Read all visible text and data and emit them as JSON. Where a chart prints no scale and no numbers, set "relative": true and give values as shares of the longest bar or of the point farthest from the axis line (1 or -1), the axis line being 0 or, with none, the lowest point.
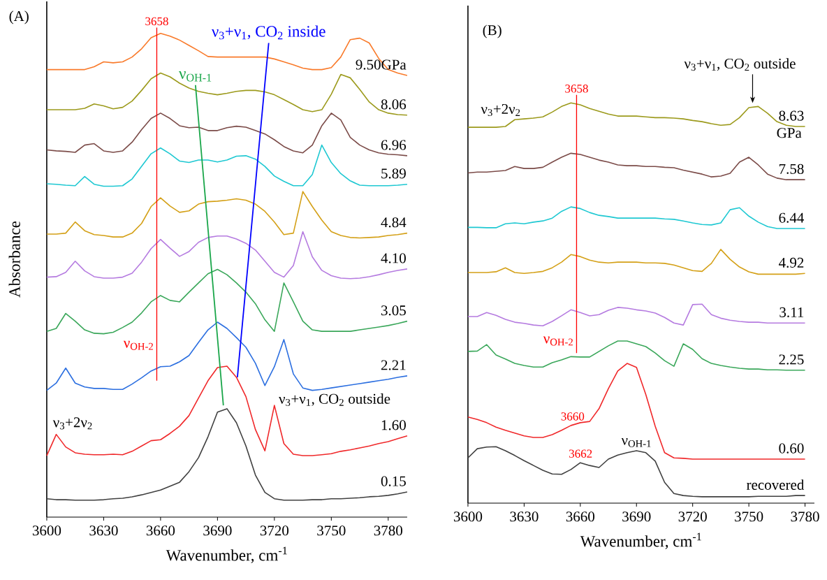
{
  "chart_data": [
    {
      "type": "line",
      "relative": true,
      "xlabel": "Wavenumber, cm$^{-1}$",
      "ylabel": "Absorbance",
      "xlim": [
        3600,
        3790
      ],
      "xticks": [
        3600,
        3630,
        3660,
        3690,
        3720,
        3750,
        3780
      ],
      "x": [
        3600,
        3605,
        3610,
        3615,
        3620,
        3625,
        3630,
        3635,
        3640,
        3645,
        3650,
        3655,
        3660,
        3665,
        3670,
        3675,
        3680,
        3685,
        3690,
        3695,
        3700,
        3705,
        3710,
        3715,
        3720,
        3725,
        3730,
        3735,
        3740,
        3745,
        3750,
        3755,
        3760,
        3765,
        3770,
        3775,
        3780,
        3785,
        3790
      ],
      "series": [
        {
          "name": "9.50GPa",
          "color": "#f97a2a",
          "values": [
            0.925,
            0.925,
            0.925,
            0.925,
            0.925,
            0.931,
            0.941,
            0.939,
            0.941,
            0.951,
            0.968,
            0.991,
            1.0,
            0.994,
            0.986,
            0.975,
            0.964,
            0.952,
            0.951,
            0.951,
            0.951,
            0.951,
            0.951,
            0.951,
            0.947,
            0.941,
            0.935,
            0.928,
            0.925,
            0.925,
            0.929,
            0.951,
            0.987,
            0.99,
            0.98,
            0.948,
            0.925,
            0.918,
            0.913
          ]
        },
        {
          "name": "8.06",
          "color": "#9c9a1c",
          "values": [
            0.842,
            0.842,
            0.842,
            0.842,
            0.845,
            0.854,
            0.85,
            0.844,
            0.847,
            0.86,
            0.882,
            0.906,
            0.918,
            0.91,
            0.897,
            0.887,
            0.88,
            0.876,
            0.873,
            0.876,
            0.88,
            0.882,
            0.882,
            0.879,
            0.873,
            0.863,
            0.853,
            0.842,
            0.838,
            0.842,
            0.874,
            0.915,
            0.908,
            0.884,
            0.858,
            0.842,
            0.835,
            0.832,
            0.831
          ]
        },
        {
          "name": "6.96",
          "color": "#7b4b48",
          "values": [
            0.759,
            0.757,
            0.756,
            0.754,
            0.769,
            0.772,
            0.757,
            0.754,
            0.757,
            0.775,
            0.801,
            0.824,
            0.835,
            0.824,
            0.809,
            0.805,
            0.806,
            0.799,
            0.799,
            0.805,
            0.808,
            0.806,
            0.799,
            0.792,
            0.78,
            0.766,
            0.757,
            0.753,
            0.769,
            0.809,
            0.835,
            0.821,
            0.785,
            0.769,
            0.759,
            0.753,
            0.75,
            0.749,
            0.747
          ]
        },
        {
          "name": "5.89",
          "color": "#1ec8d2",
          "values": [
            0.689,
            0.688,
            0.686,
            0.685,
            0.704,
            0.688,
            0.684,
            0.684,
            0.685,
            0.699,
            0.725,
            0.751,
            0.763,
            0.751,
            0.736,
            0.733,
            0.738,
            0.738,
            0.734,
            0.738,
            0.746,
            0.747,
            0.74,
            0.725,
            0.705,
            0.694,
            0.685,
            0.685,
            0.708,
            0.769,
            0.733,
            0.71,
            0.695,
            0.686,
            0.685,
            0.685,
            0.685,
            0.686,
            0.688
          ]
        },
        {
          "name": "4.84",
          "color": "#d4a017",
          "values": [
            0.585,
            0.585,
            0.587,
            0.61,
            0.592,
            0.584,
            0.582,
            0.579,
            0.579,
            0.587,
            0.607,
            0.642,
            0.66,
            0.643,
            0.63,
            0.633,
            0.647,
            0.652,
            0.653,
            0.655,
            0.658,
            0.655,
            0.647,
            0.632,
            0.61,
            0.584,
            0.587,
            0.673,
            0.642,
            0.614,
            0.59,
            0.582,
            0.578,
            0.577,
            0.578,
            0.579,
            0.582,
            0.584,
            0.587
          ]
        },
        {
          "name": "4.10",
          "color": "#b57be0",
          "values": [
            0.496,
            0.497,
            0.506,
            0.529,
            0.509,
            0.497,
            0.494,
            0.494,
            0.496,
            0.504,
            0.527,
            0.555,
            0.574,
            0.556,
            0.539,
            0.549,
            0.568,
            0.578,
            0.581,
            0.581,
            0.575,
            0.566,
            0.552,
            0.529,
            0.506,
            0.496,
            0.52,
            0.59,
            0.538,
            0.51,
            0.499,
            0.494,
            0.493,
            0.494,
            0.497,
            0.501,
            0.506,
            0.51,
            0.513
          ]
        },
        {
          "name": "3.05",
          "color": "#3aa75a",
          "values": [
            0.384,
            0.39,
            0.421,
            0.405,
            0.387,
            0.38,
            0.379,
            0.382,
            0.392,
            0.403,
            0.422,
            0.445,
            0.458,
            0.448,
            0.445,
            0.465,
            0.484,
            0.503,
            0.512,
            0.501,
            0.484,
            0.465,
            0.441,
            0.408,
            0.384,
            0.484,
            0.445,
            0.405,
            0.387,
            0.384,
            0.384,
            0.384,
            0.384,
            0.387,
            0.39,
            0.393,
            0.396,
            0.4,
            0.405
          ]
        },
        {
          "name": "2.21",
          "color": "#2c6fe0",
          "values": [
            0.262,
            0.277,
            0.308,
            0.277,
            0.269,
            0.266,
            0.266,
            0.264,
            0.264,
            0.275,
            0.288,
            0.302,
            0.311,
            0.312,
            0.321,
            0.334,
            0.361,
            0.387,
            0.403,
            0.39,
            0.371,
            0.351,
            0.318,
            0.272,
            0.311,
            0.367,
            0.296,
            0.267,
            0.262,
            0.264,
            0.267,
            0.27,
            0.273,
            0.276,
            0.279,
            0.282,
            0.285,
            0.289,
            0.292
          ]
        },
        {
          "name": "1.60",
          "color": "#f0282a",
          "values": [
            0.127,
            0.171,
            0.145,
            0.133,
            0.13,
            0.129,
            0.129,
            0.13,
            0.129,
            0.136,
            0.147,
            0.158,
            0.16,
            0.173,
            0.188,
            0.21,
            0.246,
            0.282,
            0.309,
            0.312,
            0.289,
            0.249,
            0.181,
            0.137,
            0.231,
            0.152,
            0.13,
            0.127,
            0.127,
            0.129,
            0.131,
            0.136,
            0.139,
            0.143,
            0.147,
            0.152,
            0.156,
            0.162,
            0.168
          ]
        },
        {
          "name": "0.15",
          "color": "#404040",
          "values": [
            0.038,
            0.036,
            0.036,
            0.035,
            0.035,
            0.035,
            0.036,
            0.038,
            0.039,
            0.042,
            0.046,
            0.051,
            0.056,
            0.064,
            0.072,
            0.094,
            0.123,
            0.166,
            0.217,
            0.224,
            0.195,
            0.147,
            0.087,
            0.051,
            0.038,
            0.035,
            0.035,
            0.035,
            0.036,
            0.036,
            0.038,
            0.038,
            0.039,
            0.04,
            0.042,
            0.043,
            0.045,
            0.048,
            0.052
          ]
        },
        {
          "name": "ν$_{OH-1}$",
          "color": "#1aa64a",
          "x": [
            3678.4,
            3693.1
          ],
          "values": [
            0.893,
            0.231
          ]
        },
        {
          "name": "ν$_{3}$+ν$_{1}$, CO$_{2}$ inside",
          "color": "#0000ff",
          "x": [
            3717.0,
            3700.5
          ],
          "values": [
            0.98,
            0.289
          ]
        }
      ],
      "ref_lines": [
        {
          "axis": "x",
          "value": 3658,
          "label": "3658",
          "color": "#ff0000"
        }
      ],
      "annotations": [
        "(A)",
        {
          "text": "ν$_{OH-2}$",
          "x": 3658,
          "y": 0.355
        },
        {
          "text": "ν$_{3}$+2ν$_{2}$",
          "x": 3605,
          "y": 0.171
        },
        {
          "text": "ν$_{3}$+ν$_{1}$, CO$_{2}$ outside",
          "x": 3720,
          "y": 0.231
        }
      ]
    },
    {
      "type": "line",
      "relative": true,
      "xlabel": "Wavenumber, cm$^{-1}$",
      "xlim": [
        3600,
        3785
      ],
      "xticks": [
        3600,
        3630,
        3660,
        3690,
        3720,
        3750,
        3780
      ],
      "x": [
        3600,
        3605,
        3610,
        3615,
        3620,
        3625,
        3630,
        3635,
        3640,
        3645,
        3650,
        3655,
        3660,
        3665,
        3670,
        3675,
        3680,
        3685,
        3690,
        3695,
        3700,
        3705,
        3710,
        3715,
        3720,
        3725,
        3730,
        3735,
        3740,
        3745,
        3750,
        3755,
        3760,
        3765,
        3770,
        3775,
        3780
      ],
      "series": [
        {
          "name": "8.63",
          "color": "#9c9a1c",
          "values": [
            0.939,
            0.939,
            0.939,
            0.939,
            0.941,
            0.958,
            0.96,
            0.962,
            0.965,
            0.977,
            0.991,
            1.0,
            0.995,
            0.986,
            0.979,
            0.972,
            0.967,
            0.967,
            0.967,
            0.965,
            0.963,
            0.963,
            0.962,
            0.96,
            0.956,
            0.953,
            0.948,
            0.944,
            0.946,
            0.963,
            0.988,
            0.991,
            0.974,
            0.953,
            0.944,
            0.941,
            0.941
          ]
        },
        {
          "name": "7.58",
          "color": "#7b4b48",
          "values": [
            0.825,
            0.827,
            0.827,
            0.829,
            0.831,
            0.841,
            0.836,
            0.836,
            0.839,
            0.852,
            0.864,
            0.874,
            0.871,
            0.864,
            0.857,
            0.852,
            0.845,
            0.843,
            0.843,
            0.841,
            0.841,
            0.839,
            0.838,
            0.832,
            0.827,
            0.822,
            0.815,
            0.817,
            0.824,
            0.852,
            0.864,
            0.845,
            0.822,
            0.812,
            0.808,
            0.808,
            0.808
          ]
        },
        {
          "name": "6.44",
          "color": "#1ec8d2",
          "values": [
            0.689,
            0.689,
            0.688,
            0.688,
            0.698,
            0.7,
            0.698,
            0.702,
            0.705,
            0.712,
            0.729,
            0.74,
            0.736,
            0.726,
            0.719,
            0.716,
            0.712,
            0.712,
            0.712,
            0.712,
            0.712,
            0.71,
            0.709,
            0.705,
            0.7,
            0.696,
            0.695,
            0.7,
            0.733,
            0.738,
            0.717,
            0.702,
            0.691,
            0.686,
            0.686,
            0.686,
            0.686
          ]
        },
        {
          "name": "4.92",
          "color": "#d4a017",
          "values": [
            0.576,
            0.576,
            0.576,
            0.578,
            0.588,
            0.576,
            0.574,
            0.576,
            0.579,
            0.588,
            0.602,
            0.621,
            0.616,
            0.607,
            0.602,
            0.6,
            0.602,
            0.602,
            0.602,
            0.6,
            0.6,
            0.599,
            0.595,
            0.588,
            0.581,
            0.579,
            0.599,
            0.634,
            0.609,
            0.59,
            0.578,
            0.572,
            0.572,
            0.572,
            0.572,
            0.572,
            0.574
          ]
        },
        {
          "name": "3.11",
          "color": "#b57be0",
          "values": [
            0.466,
            0.466,
            0.476,
            0.469,
            0.459,
            0.452,
            0.449,
            0.445,
            0.443,
            0.454,
            0.468,
            0.483,
            0.476,
            0.468,
            0.471,
            0.482,
            0.489,
            0.487,
            0.483,
            0.48,
            0.475,
            0.464,
            0.45,
            0.445,
            0.496,
            0.497,
            0.471,
            0.462,
            0.457,
            0.454,
            0.452,
            0.452,
            0.45,
            0.45,
            0.45,
            0.45,
            0.45
          ]
        },
        {
          "name": "2.25",
          "color": "#3aa75a",
          "values": [
            0.379,
            0.38,
            0.396,
            0.37,
            0.36,
            0.349,
            0.344,
            0.34,
            0.34,
            0.351,
            0.358,
            0.366,
            0.365,
            0.365,
            0.379,
            0.393,
            0.405,
            0.405,
            0.398,
            0.391,
            0.375,
            0.356,
            0.342,
            0.398,
            0.384,
            0.361,
            0.349,
            0.344,
            0.34,
            0.337,
            0.335,
            0.335,
            0.333,
            0.333,
            0.332,
            0.332,
            0.332
          ]
        },
        {
          "name": "0.60",
          "color": "#f0282a",
          "values": [
            0.215,
            0.209,
            0.201,
            0.19,
            0.182,
            0.175,
            0.168,
            0.164,
            0.164,
            0.171,
            0.182,
            0.194,
            0.201,
            0.204,
            0.236,
            0.286,
            0.33,
            0.349,
            0.339,
            0.271,
            0.192,
            0.126,
            0.113,
            0.112,
            0.11,
            0.11,
            0.11,
            0.11,
            0.11,
            0.11,
            0.11,
            0.11,
            0.11,
            0.11,
            0.11,
            0.11,
            0.11
          ]
        },
        {
          "name": "recovered",
          "color": "#404040",
          "values": [
            0.113,
            0.136,
            0.14,
            0.141,
            0.131,
            0.119,
            0.106,
            0.094,
            0.082,
            0.073,
            0.072,
            0.084,
            0.101,
            0.094,
            0.089,
            0.11,
            0.12,
            0.126,
            0.131,
            0.126,
            0.105,
            0.052,
            0.024,
            0.019,
            0.017,
            0.016,
            0.016,
            0.016,
            0.016,
            0.016,
            0.016,
            0.017,
            0.017,
            0.017,
            0.017,
            0.019,
            0.019
          ]
        }
      ],
      "ref_lines": [
        {
          "axis": "x",
          "value": 3658,
          "label": "3658",
          "color": "#ff0000"
        }
      ],
      "annotations": [
        "(B)",
        {
          "text": "ν$_{3}$+2ν$_{2}$",
          "x": 3625,
          "y": 0.958
        },
        {
          "text": "ν$_{3}$+ν$_{1}$, CO$_{2}$ outside",
          "x": 3752,
          "y": 0.991
        },
        {
          "text": "ν$_{OH-2}$",
          "x": 3658,
          "y": 0.405
        },
        {
          "text": "3660",
          "x": 3660,
          "y": 0.201
        },
        {
          "text": "3662",
          "x": 3662,
          "y": 0.101
        },
        {
          "text": "ν$_{OH-1}$",
          "x": 3690,
          "y": 0.131
        },
        "GPa"
      ]
    }
  ]
}
